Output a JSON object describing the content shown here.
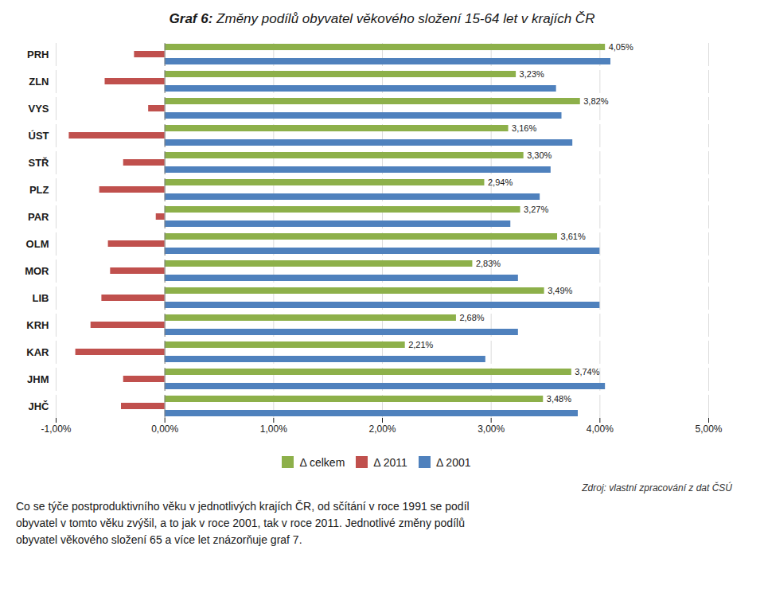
{
  "chart_data": {
    "type": "bar",
    "orientation": "horizontal",
    "title": "Graf 6:",
    "subtitle": "Změny podílů obyvatel věkového složení 15-64 let v krajích ČR",
    "categories": [
      "PRH",
      "ZLN",
      "VYS",
      "ÚST",
      "STŘ",
      "PLZ",
      "PAR",
      "OLM",
      "MOR",
      "LIB",
      "KRH",
      "KAR",
      "JHM",
      "JHČ"
    ],
    "series": [
      {
        "name": "Δ celkem",
        "color": "#8DB04A",
        "values": [
          4.05,
          3.23,
          3.82,
          3.16,
          3.3,
          2.94,
          3.27,
          3.61,
          2.83,
          3.49,
          2.68,
          2.21,
          3.74,
          3.48
        ],
        "data_labels": true,
        "value_labels": [
          "4,05%",
          "3,23%",
          "3,82%",
          "3,16%",
          "3,30%",
          "2,94%",
          "3,27%",
          "3,61%",
          "2,83%",
          "3,49%",
          "2,68%",
          "2,21%",
          "3,74%",
          "3,48%"
        ]
      },
      {
        "name": "Δ 2011",
        "color": "#C0504D",
        "values": [
          -0.28,
          -0.55,
          -0.15,
          -0.88,
          -0.38,
          -0.6,
          -0.08,
          -0.52,
          -0.5,
          -0.58,
          -0.68,
          -0.82,
          -0.38,
          -0.4
        ]
      },
      {
        "name": "Δ 2001",
        "color": "#4F81BD",
        "values": [
          4.1,
          3.6,
          3.65,
          3.75,
          3.55,
          3.45,
          3.18,
          4.0,
          3.25,
          4.0,
          3.25,
          2.95,
          4.05,
          3.8
        ]
      }
    ],
    "xlim": [
      -1.0,
      5.0
    ],
    "xticks": [
      {
        "value": -1.0,
        "label": "-1,00%"
      },
      {
        "value": 0.0,
        "label": "0,00%"
      },
      {
        "value": 1.0,
        "label": "1,00%"
      },
      {
        "value": 2.0,
        "label": "2,00%"
      },
      {
        "value": 3.0,
        "label": "3,00%"
      },
      {
        "value": 4.0,
        "label": "4,00%"
      },
      {
        "value": 5.0,
        "label": "5,00%"
      }
    ],
    "grid": true,
    "legend": "bottom",
    "annotations": [
      "Zdroj: vlastní zpracování z dat ČSÚ",
      "Co se týče postproduktivního věku v jednotlivých krajích ČR, od sčítání v roce 1991 se podíl\nobyvatel v tomto věku zvýšil, a to jak v roce 2001, tak v roce 2011. Jednotlivé změny podílů\nobyvatel věkového složení 65 a více let znázorňuje graf 7."
    ]
  }
}
